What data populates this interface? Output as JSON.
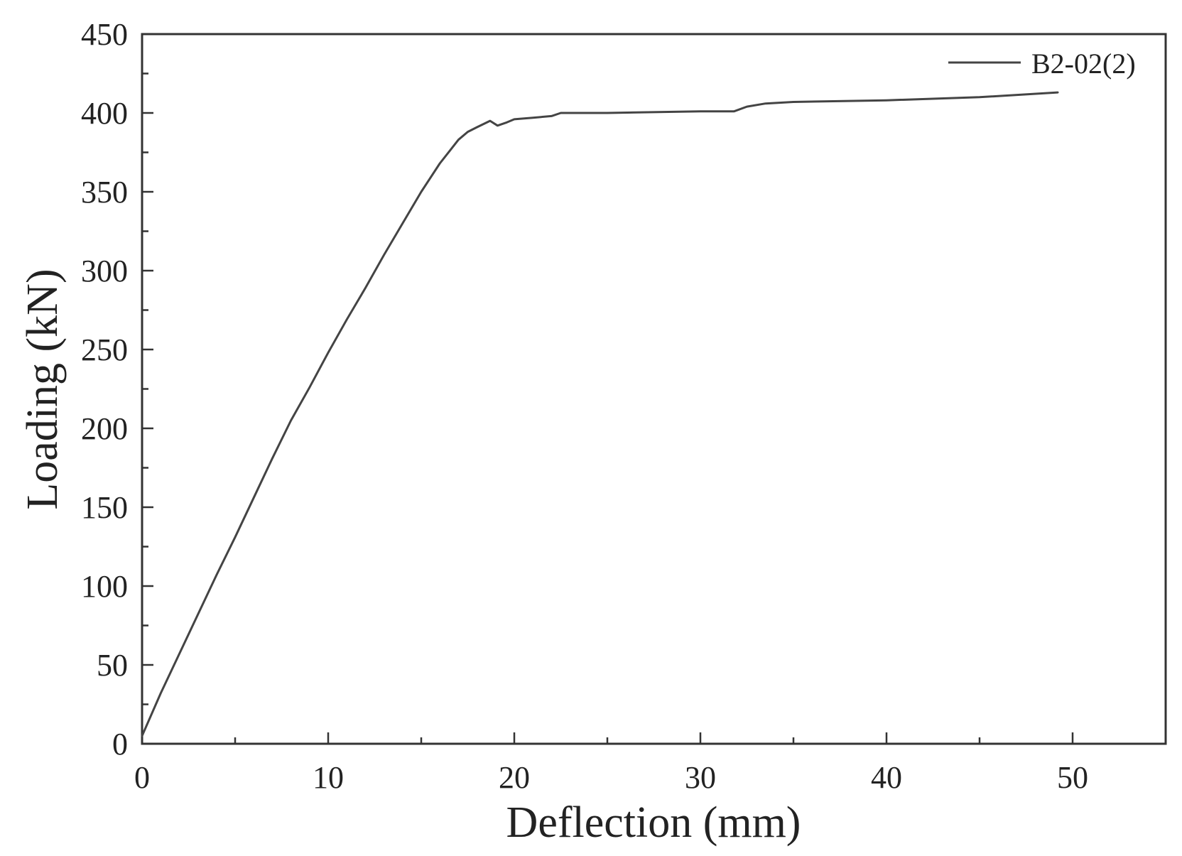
{
  "chart_data": {
    "type": "line",
    "xlabel": "Deflection (mm)",
    "ylabel": "Loading (kN)",
    "xlim": [
      0,
      55
    ],
    "ylim": [
      0,
      450
    ],
    "x_ticks": [
      0,
      10,
      20,
      30,
      40,
      50
    ],
    "y_ticks": [
      0,
      50,
      100,
      150,
      200,
      250,
      300,
      350,
      400,
      450
    ],
    "x_minor_step": 5,
    "y_minor_step": 25,
    "grid": false,
    "legend_position": "top-right",
    "line_color": "#444444",
    "series": [
      {
        "name": "B2-02(2)",
        "x": [
          0,
          1,
          2,
          3,
          4,
          5,
          6,
          7,
          8,
          9,
          10,
          11,
          12,
          13,
          14,
          15,
          16,
          17,
          17.5,
          18,
          18.7,
          19.1,
          19.6,
          20,
          21,
          22,
          22.5,
          25,
          30,
          31.8,
          32.5,
          33.5,
          35,
          40,
          45,
          49.2
        ],
        "y": [
          5,
          32,
          57,
          82,
          107,
          131,
          156,
          181,
          205,
          226,
          248,
          269,
          289,
          310,
          330,
          350,
          368,
          383,
          388,
          391,
          395,
          392,
          394,
          396,
          397,
          398,
          400,
          400,
          401,
          401,
          404,
          406,
          407,
          408,
          410,
          413
        ]
      }
    ]
  }
}
